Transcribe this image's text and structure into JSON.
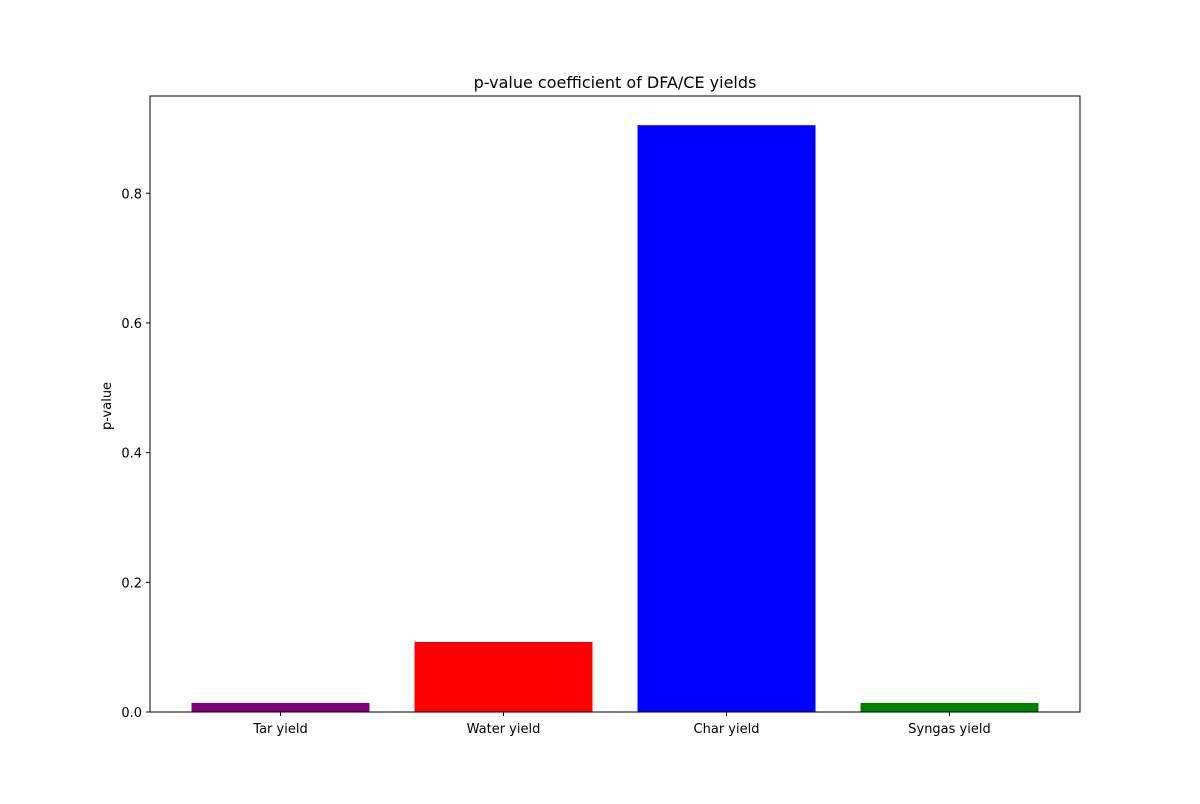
{
  "chart_data": {
    "type": "bar",
    "title": "p-value coefficient of DFA/CE yields",
    "xlabel": "",
    "ylabel": "p-value",
    "categories": [
      "Tar yield",
      "Water yield",
      "Char yield",
      "Syngas yield"
    ],
    "values": [
      0.014,
      0.108,
      0.905,
      0.014
    ],
    "colors": [
      "#800080",
      "#ff0000",
      "#0000ff",
      "#008000"
    ],
    "ylim": [
      0,
      0.95
    ],
    "yticks": [
      0.0,
      0.2,
      0.4,
      0.6,
      0.8
    ],
    "ytick_labels": [
      "0.0",
      "0.2",
      "0.4",
      "0.6",
      "0.8"
    ],
    "grid": false,
    "legend": null
  }
}
